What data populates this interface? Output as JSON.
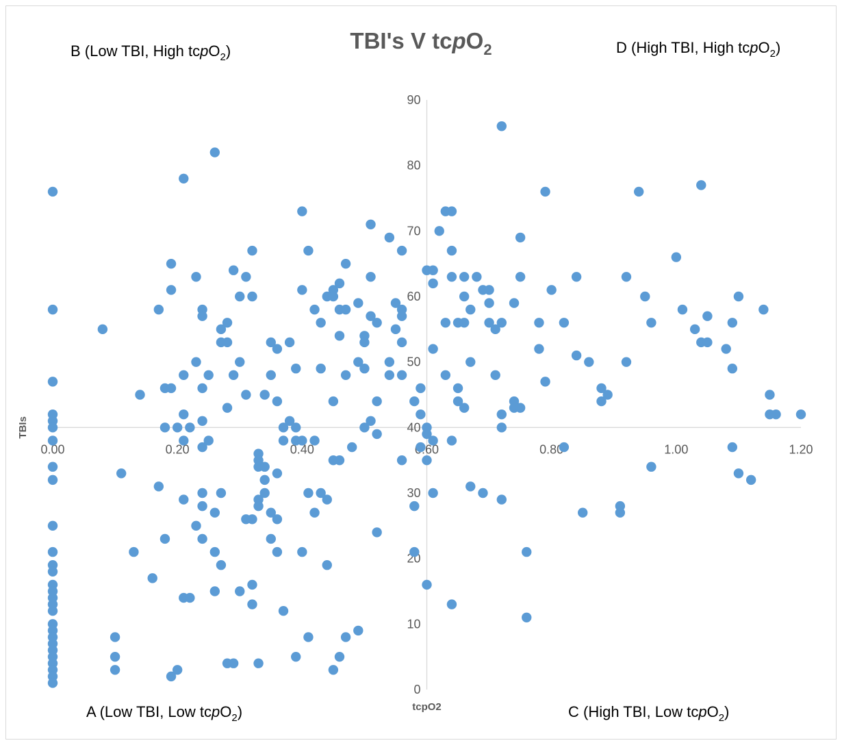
{
  "chart_data": {
    "type": "scatter",
    "title": {
      "prefix": "TBI's V tc",
      "italic": "p",
      "mid": "O",
      "sub": "2"
    },
    "xlabel": "tcpO2",
    "ylabel": "TBIs",
    "xlim": [
      0,
      1.2
    ],
    "ylim": [
      0,
      90
    ],
    "x_ticks": [
      "0.00",
      "0.20",
      "0.40",
      "0.60",
      "0.80",
      "1.00",
      "1.20"
    ],
    "y_ticks": [
      "0",
      "10",
      "20",
      "30",
      "40",
      "50",
      "60",
      "70",
      "80",
      "90"
    ],
    "grid": false,
    "axes_cross": {
      "x": 0.6,
      "y": 40
    },
    "marker_color": "#5B9BD5",
    "quadrant_labels": [
      {
        "id": "B",
        "pre": "B (Low TBI, High tc",
        "it": "p",
        "o": "O",
        "sub": "2",
        "post": ")"
      },
      {
        "id": "D",
        "pre": "D (High TBI, High tc",
        "it": "p",
        "o": "O",
        "sub": "2",
        "post": ")"
      },
      {
        "id": "A",
        "pre": "A (Low TBI, Low tc",
        "it": "p",
        "o": "O",
        "sub": "2",
        "post": ")"
      },
      {
        "id": "C",
        "pre": "C (High TBI, Low tc",
        "it": "p",
        "o": "O",
        "sub": "2",
        "post": ")"
      }
    ],
    "points": [
      [
        0,
        76
      ],
      [
        0,
        58
      ],
      [
        0,
        47
      ],
      [
        0,
        42
      ],
      [
        0,
        41
      ],
      [
        0,
        40
      ],
      [
        0,
        38
      ],
      [
        0,
        34
      ],
      [
        0,
        32
      ],
      [
        0,
        25
      ],
      [
        0,
        21
      ],
      [
        0,
        19
      ],
      [
        0,
        18
      ],
      [
        0,
        16
      ],
      [
        0,
        15
      ],
      [
        0,
        14
      ],
      [
        0,
        13
      ],
      [
        0,
        12
      ],
      [
        0,
        10
      ],
      [
        0,
        9
      ],
      [
        0,
        8
      ],
      [
        0,
        7
      ],
      [
        0,
        6
      ],
      [
        0,
        5
      ],
      [
        0,
        4
      ],
      [
        0,
        3
      ],
      [
        0,
        2
      ],
      [
        0,
        1
      ],
      [
        0.08,
        55
      ],
      [
        0.1,
        8
      ],
      [
        0.1,
        5
      ],
      [
        0.1,
        3
      ],
      [
        0.11,
        33
      ],
      [
        0.13,
        21
      ],
      [
        0.14,
        45
      ],
      [
        0.16,
        17
      ],
      [
        0.17,
        31
      ],
      [
        0.17,
        58
      ],
      [
        0.18,
        46
      ],
      [
        0.18,
        40
      ],
      [
        0.18,
        23
      ],
      [
        0.19,
        46
      ],
      [
        0.19,
        65
      ],
      [
        0.19,
        61
      ],
      [
        0.19,
        2
      ],
      [
        0.2,
        40
      ],
      [
        0.2,
        3
      ],
      [
        0.21,
        78
      ],
      [
        0.21,
        48
      ],
      [
        0.21,
        42
      ],
      [
        0.21,
        38
      ],
      [
        0.21,
        29
      ],
      [
        0.21,
        14
      ],
      [
        0.22,
        40
      ],
      [
        0.22,
        14
      ],
      [
        0.23,
        63
      ],
      [
        0.23,
        50
      ],
      [
        0.23,
        25
      ],
      [
        0.24,
        58
      ],
      [
        0.24,
        57
      ],
      [
        0.24,
        46
      ],
      [
        0.24,
        41
      ],
      [
        0.24,
        37
      ],
      [
        0.24,
        30
      ],
      [
        0.24,
        28
      ],
      [
        0.24,
        23
      ],
      [
        0.25,
        48
      ],
      [
        0.25,
        38
      ],
      [
        0.26,
        82
      ],
      [
        0.26,
        27
      ],
      [
        0.26,
        21
      ],
      [
        0.26,
        15
      ],
      [
        0.27,
        55
      ],
      [
        0.27,
        53
      ],
      [
        0.27,
        30
      ],
      [
        0.27,
        19
      ],
      [
        0.28,
        56
      ],
      [
        0.28,
        53
      ],
      [
        0.28,
        43
      ],
      [
        0.28,
        4
      ],
      [
        0.29,
        64
      ],
      [
        0.29,
        48
      ],
      [
        0.29,
        4
      ],
      [
        0.3,
        60
      ],
      [
        0.3,
        50
      ],
      [
        0.3,
        15
      ],
      [
        0.31,
        63
      ],
      [
        0.31,
        45
      ],
      [
        0.31,
        26
      ],
      [
        0.32,
        67
      ],
      [
        0.32,
        60
      ],
      [
        0.32,
        26
      ],
      [
        0.32,
        16
      ],
      [
        0.32,
        13
      ],
      [
        0.33,
        36
      ],
      [
        0.33,
        35
      ],
      [
        0.33,
        34
      ],
      [
        0.33,
        29
      ],
      [
        0.33,
        28
      ],
      [
        0.33,
        4
      ],
      [
        0.34,
        45
      ],
      [
        0.34,
        34
      ],
      [
        0.34,
        32
      ],
      [
        0.34,
        30
      ],
      [
        0.35,
        53
      ],
      [
        0.35,
        48
      ],
      [
        0.35,
        27
      ],
      [
        0.35,
        23
      ],
      [
        0.36,
        52
      ],
      [
        0.36,
        44
      ],
      [
        0.36,
        33
      ],
      [
        0.36,
        26
      ],
      [
        0.36,
        21
      ],
      [
        0.37,
        40
      ],
      [
        0.37,
        38
      ],
      [
        0.37,
        12
      ],
      [
        0.38,
        53
      ],
      [
        0.38,
        41
      ],
      [
        0.39,
        49
      ],
      [
        0.39,
        40
      ],
      [
        0.39,
        38
      ],
      [
        0.39,
        5
      ],
      [
        0.4,
        73
      ],
      [
        0.4,
        61
      ],
      [
        0.4,
        38
      ],
      [
        0.4,
        21
      ],
      [
        0.41,
        67
      ],
      [
        0.41,
        30
      ],
      [
        0.41,
        8
      ],
      [
        0.42,
        58
      ],
      [
        0.42,
        38
      ],
      [
        0.42,
        27
      ],
      [
        0.43,
        56
      ],
      [
        0.43,
        49
      ],
      [
        0.43,
        30
      ],
      [
        0.44,
        60
      ],
      [
        0.44,
        29
      ],
      [
        0.44,
        19
      ],
      [
        0.45,
        61
      ],
      [
        0.45,
        60
      ],
      [
        0.45,
        44
      ],
      [
        0.45,
        35
      ],
      [
        0.45,
        3
      ],
      [
        0.46,
        62
      ],
      [
        0.46,
        58
      ],
      [
        0.46,
        54
      ],
      [
        0.46,
        35
      ],
      [
        0.46,
        5
      ],
      [
        0.47,
        65
      ],
      [
        0.47,
        58
      ],
      [
        0.47,
        48
      ],
      [
        0.47,
        8
      ],
      [
        0.48,
        37
      ],
      [
        0.49,
        59
      ],
      [
        0.49,
        50
      ],
      [
        0.49,
        9
      ],
      [
        0.5,
        54
      ],
      [
        0.5,
        53
      ],
      [
        0.5,
        49
      ],
      [
        0.5,
        40
      ],
      [
        0.51,
        71
      ],
      [
        0.51,
        63
      ],
      [
        0.51,
        57
      ],
      [
        0.51,
        41
      ],
      [
        0.52,
        56
      ],
      [
        0.52,
        44
      ],
      [
        0.52,
        39
      ],
      [
        0.52,
        24
      ],
      [
        0.54,
        69
      ],
      [
        0.54,
        50
      ],
      [
        0.54,
        48
      ],
      [
        0.55,
        59
      ],
      [
        0.55,
        55
      ],
      [
        0.56,
        67
      ],
      [
        0.56,
        58
      ],
      [
        0.56,
        57
      ],
      [
        0.56,
        53
      ],
      [
        0.56,
        48
      ],
      [
        0.56,
        35
      ],
      [
        0.58,
        44
      ],
      [
        0.58,
        28
      ],
      [
        0.58,
        21
      ],
      [
        0.59,
        46
      ],
      [
        0.59,
        42
      ],
      [
        0.59,
        37
      ],
      [
        0.6,
        64
      ],
      [
        0.6,
        40
      ],
      [
        0.6,
        39
      ],
      [
        0.6,
        35
      ],
      [
        0.6,
        16
      ],
      [
        0.61,
        64
      ],
      [
        0.61,
        62
      ],
      [
        0.61,
        52
      ],
      [
        0.61,
        38
      ],
      [
        0.61,
        30
      ],
      [
        0.62,
        70
      ],
      [
        0.63,
        73
      ],
      [
        0.63,
        56
      ],
      [
        0.63,
        48
      ],
      [
        0.64,
        73
      ],
      [
        0.64,
        67
      ],
      [
        0.64,
        63
      ],
      [
        0.64,
        38
      ],
      [
        0.64,
        13
      ],
      [
        0.65,
        56
      ],
      [
        0.65,
        46
      ],
      [
        0.65,
        44
      ],
      [
        0.66,
        63
      ],
      [
        0.66,
        60
      ],
      [
        0.66,
        56
      ],
      [
        0.66,
        43
      ],
      [
        0.67,
        58
      ],
      [
        0.67,
        50
      ],
      [
        0.67,
        31
      ],
      [
        0.68,
        63
      ],
      [
        0.69,
        61
      ],
      [
        0.69,
        30
      ],
      [
        0.7,
        61
      ],
      [
        0.7,
        59
      ],
      [
        0.7,
        56
      ],
      [
        0.71,
        55
      ],
      [
        0.71,
        48
      ],
      [
        0.72,
        86
      ],
      [
        0.72,
        56
      ],
      [
        0.72,
        42
      ],
      [
        0.72,
        40
      ],
      [
        0.72,
        29
      ],
      [
        0.74,
        59
      ],
      [
        0.74,
        44
      ],
      [
        0.74,
        43
      ],
      [
        0.75,
        69
      ],
      [
        0.75,
        63
      ],
      [
        0.75,
        43
      ],
      [
        0.76,
        21
      ],
      [
        0.76,
        11
      ],
      [
        0.78,
        56
      ],
      [
        0.78,
        52
      ],
      [
        0.79,
        76
      ],
      [
        0.79,
        47
      ],
      [
        0.8,
        61
      ],
      [
        0.82,
        56
      ],
      [
        0.82,
        37
      ],
      [
        0.84,
        63
      ],
      [
        0.84,
        51
      ],
      [
        0.85,
        27
      ],
      [
        0.86,
        50
      ],
      [
        0.88,
        46
      ],
      [
        0.88,
        44
      ],
      [
        0.89,
        45
      ],
      [
        0.91,
        28
      ],
      [
        0.91,
        27
      ],
      [
        0.92,
        63
      ],
      [
        0.92,
        50
      ],
      [
        0.94,
        76
      ],
      [
        0.95,
        60
      ],
      [
        0.96,
        56
      ],
      [
        0.96,
        34
      ],
      [
        1.0,
        66
      ],
      [
        1.01,
        58
      ],
      [
        1.03,
        55
      ],
      [
        1.04,
        77
      ],
      [
        1.04,
        53
      ],
      [
        1.05,
        57
      ],
      [
        1.05,
        53
      ],
      [
        1.08,
        52
      ],
      [
        1.09,
        56
      ],
      [
        1.09,
        49
      ],
      [
        1.09,
        37
      ],
      [
        1.1,
        60
      ],
      [
        1.1,
        33
      ],
      [
        1.12,
        32
      ],
      [
        1.14,
        58
      ],
      [
        1.15,
        45
      ],
      [
        1.15,
        42
      ],
      [
        1.16,
        42
      ],
      [
        1.2,
        42
      ]
    ]
  }
}
